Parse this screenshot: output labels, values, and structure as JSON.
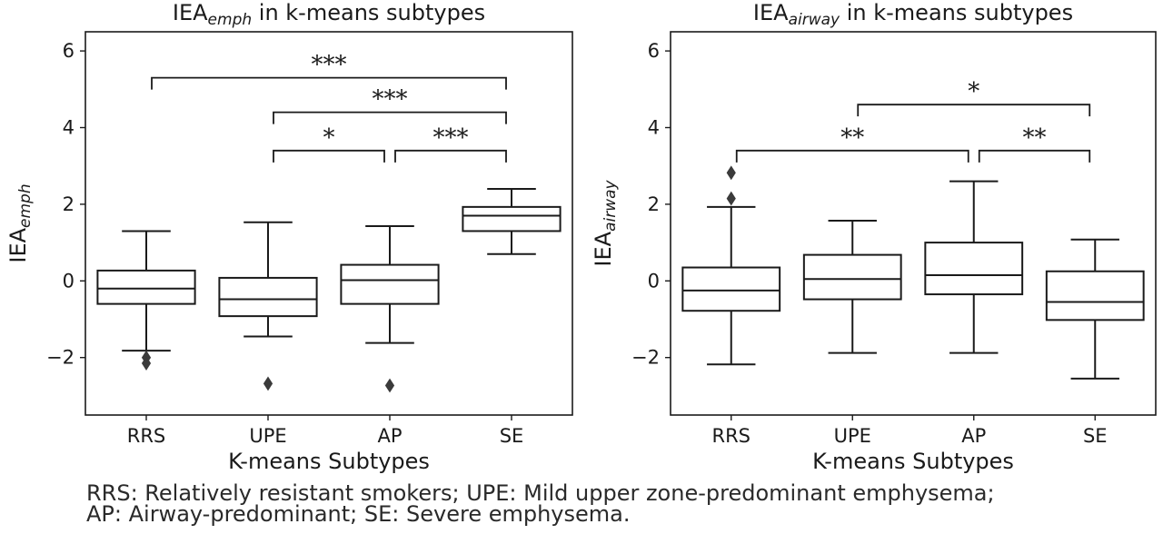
{
  "chart_data": [
    {
      "type": "box",
      "title_prefix": "IEA",
      "title_sub": "emph",
      "title_suffix": " in k-means subtypes",
      "xlabel": "K-means Subtypes",
      "ylabel_prefix": "IEA",
      "ylabel_sub": "emph",
      "categories": [
        "RRS",
        "UPE",
        "AP",
        "SE"
      ],
      "ylim": [
        -3.5,
        6.5
      ],
      "yticks": [
        -2,
        0,
        2,
        4,
        6
      ],
      "ytick_labels": [
        "−2",
        "0",
        "2",
        "4",
        "6"
      ],
      "boxes": [
        {
          "whisker_low": -1.82,
          "q1": -0.6,
          "median": -0.2,
          "q3": 0.27,
          "whisker_high": 1.3,
          "outliers": [
            -2.0,
            -2.15
          ]
        },
        {
          "whisker_low": -1.45,
          "q1": -0.92,
          "median": -0.48,
          "q3": 0.08,
          "whisker_high": 1.53,
          "outliers": [
            -2.68
          ]
        },
        {
          "whisker_low": -1.62,
          "q1": -0.6,
          "median": 0.02,
          "q3": 0.42,
          "whisker_high": 1.43,
          "outliers": [
            -2.73
          ]
        },
        {
          "whisker_low": 0.7,
          "q1": 1.3,
          "median": 1.7,
          "q3": 1.93,
          "whisker_high": 2.4,
          "outliers": []
        }
      ],
      "brackets": [
        {
          "from": 0,
          "to": 3,
          "y": 5.3,
          "label": "***"
        },
        {
          "from": 1,
          "to": 3,
          "y": 4.4,
          "label": "***"
        },
        {
          "from": 1,
          "to": 2,
          "y": 3.4,
          "label": "*"
        },
        {
          "from": 2,
          "to": 3,
          "y": 3.4,
          "label": "***"
        }
      ]
    },
    {
      "type": "box",
      "title_prefix": "IEA",
      "title_sub": "airway",
      "title_suffix": " in k-means subtypes",
      "xlabel": "K-means Subtypes",
      "ylabel_prefix": "IEA",
      "ylabel_sub": "airway",
      "categories": [
        "RRS",
        "UPE",
        "AP",
        "SE"
      ],
      "ylim": [
        -3.5,
        6.5
      ],
      "yticks": [
        -2,
        0,
        2,
        4,
        6
      ],
      "ytick_labels": [
        "−2",
        "0",
        "2",
        "4",
        "6"
      ],
      "boxes": [
        {
          "whisker_low": -2.18,
          "q1": -0.78,
          "median": -0.25,
          "q3": 0.35,
          "whisker_high": 1.93,
          "outliers": [
            2.15,
            2.82
          ]
        },
        {
          "whisker_low": -1.88,
          "q1": -0.48,
          "median": 0.05,
          "q3": 0.68,
          "whisker_high": 1.57,
          "outliers": []
        },
        {
          "whisker_low": -1.88,
          "q1": -0.35,
          "median": 0.15,
          "q3": 1.0,
          "whisker_high": 2.6,
          "outliers": []
        },
        {
          "whisker_low": -2.55,
          "q1": -1.02,
          "median": -0.55,
          "q3": 0.25,
          "whisker_high": 1.08,
          "outliers": []
        }
      ],
      "brackets": [
        {
          "from": 1,
          "to": 3,
          "y": 4.6,
          "label": "*"
        },
        {
          "from": 0,
          "to": 2,
          "y": 3.4,
          "label": "**"
        },
        {
          "from": 2,
          "to": 3,
          "y": 3.4,
          "label": "**"
        }
      ]
    }
  ],
  "caption": {
    "line1": "RRS: Relatively resistant smokers; UPE: Mild upper zone-predominant emphysema;",
    "line2": "AP: Airway-predominant; SE: Severe emphysema."
  }
}
